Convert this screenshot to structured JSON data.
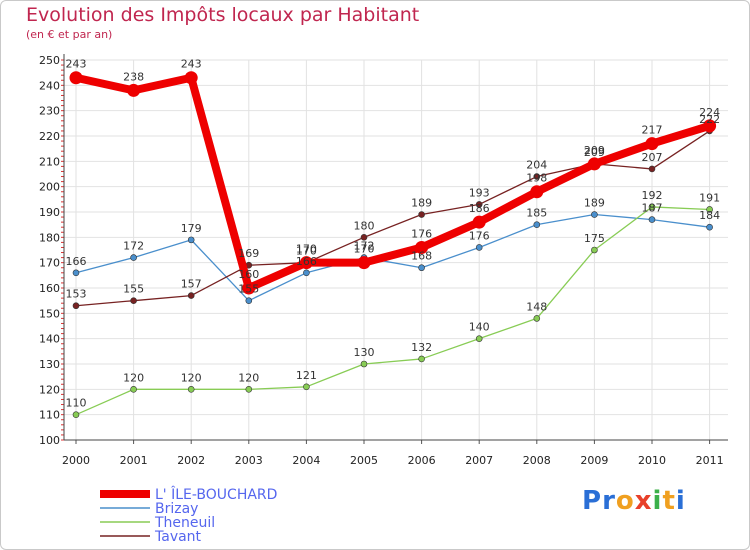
{
  "title": "Evolution des Impôts locaux par Habitant",
  "subtitle": "(en € et par an)",
  "logo": {
    "letters": [
      "P",
      "r",
      "o",
      "x",
      "i",
      "t",
      "i"
    ],
    "colors": [
      "#2a6fd6",
      "#2a6fd6",
      "#f0a020",
      "#e8402a",
      "#3cb04a",
      "#f0a020",
      "#2a6fd6"
    ]
  },
  "chart_data": {
    "type": "line",
    "title": "Evolution des Impôts locaux par Habitant",
    "subtitle": "(en € et par an)",
    "xlabel": "",
    "ylabel": "",
    "ylim": [
      100,
      250
    ],
    "yticks": [
      "100",
      "110",
      "120",
      "130",
      "140",
      "150",
      "160",
      "170",
      "180",
      "190",
      "200",
      "210",
      "220",
      "230",
      "240",
      "250"
    ],
    "categories": [
      "2000",
      "2001",
      "2002",
      "2003",
      "2004",
      "2005",
      "2006",
      "2007",
      "2008",
      "2009",
      "2010",
      "2011"
    ],
    "grid": true,
    "legend_position": "bottom-left",
    "series": [
      {
        "name": "L' ÎLE-BOUCHARD",
        "color": "#ee0000",
        "values": [
          243,
          238,
          243,
          160,
          170,
          170,
          176,
          186,
          198,
          209,
          217,
          224
        ]
      },
      {
        "name": "Brizay",
        "color": "#4a8fcc",
        "values": [
          166,
          172,
          179,
          155,
          166,
          172,
          168,
          176,
          185,
          189,
          187,
          184
        ]
      },
      {
        "name": "Theneuil",
        "color": "#88cc55",
        "values": [
          110,
          120,
          120,
          120,
          121,
          130,
          132,
          140,
          148,
          175,
          192,
          191
        ]
      },
      {
        "name": "Tavant",
        "color": "#772222",
        "values": [
          153,
          155,
          157,
          169,
          170,
          180,
          189,
          193,
          204,
          209,
          207,
          222
        ]
      }
    ],
    "data_labels": [
      [
        "243",
        "238",
        "243",
        "160",
        "170",
        "170",
        "176",
        "186",
        "198",
        "209",
        "217",
        "224"
      ],
      [
        "166",
        "172",
        "179",
        "155",
        "166",
        "172",
        "168",
        "176",
        "185",
        "189",
        "187",
        "184"
      ],
      [
        "110",
        "120",
        "120",
        "120",
        "121",
        "130",
        "132",
        "140",
        "148",
        "175",
        "192",
        "191"
      ],
      [
        "153",
        "155",
        "157",
        "169",
        "170",
        "180",
        "189",
        "193",
        "204",
        "209",
        "207",
        "222"
      ]
    ]
  }
}
